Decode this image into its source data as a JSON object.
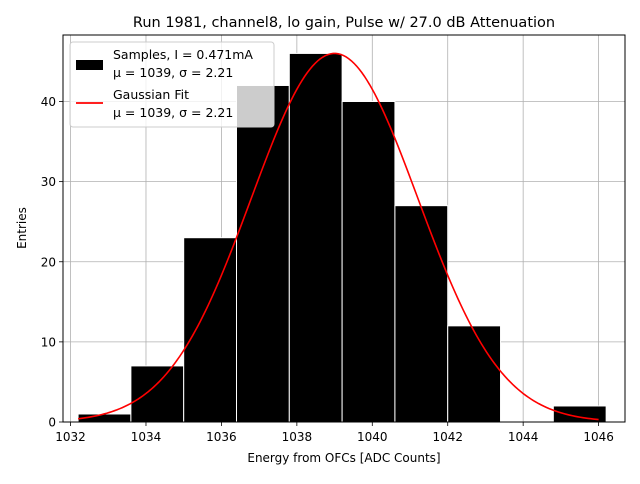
{
  "chart_data": {
    "type": "bar",
    "title": "Run 1981, channel8, lo gain, Pulse w/ 27.0 dB Attenuation",
    "xlabel": "Energy from OFCs [ADC Counts]",
    "ylabel": "Entries",
    "xlim": [
      1031.8,
      1046.7
    ],
    "ylim": [
      0,
      48.3
    ],
    "grid": true,
    "xticks": [
      1032,
      1034,
      1036,
      1038,
      1040,
      1042,
      1044,
      1046
    ],
    "yticks": [
      0,
      10,
      20,
      30,
      40
    ],
    "series": [
      {
        "name": "Samples, I = 0.471mA",
        "name_line2": "μ = 1039, σ = 2.21",
        "type": "histogram",
        "bin_edges": [
          1032.2,
          1033.6,
          1035.0,
          1036.4,
          1037.8,
          1039.2,
          1040.6,
          1042.0,
          1043.4,
          1044.8,
          1046.2
        ],
        "values": [
          1,
          7,
          23,
          42,
          46,
          40,
          27,
          12,
          0,
          2
        ],
        "color": "#000000",
        "edgecolor": "#ffffff"
      },
      {
        "name": "Gaussian Fit",
        "name_line2": "μ = 1039, σ = 2.21",
        "type": "line",
        "mu": 1039.0,
        "sigma": 2.21,
        "amplitude": 46.0,
        "x_range": [
          1032.2,
          1046.0
        ],
        "color": "#ff0000"
      }
    ],
    "legend_position": "top-left"
  }
}
